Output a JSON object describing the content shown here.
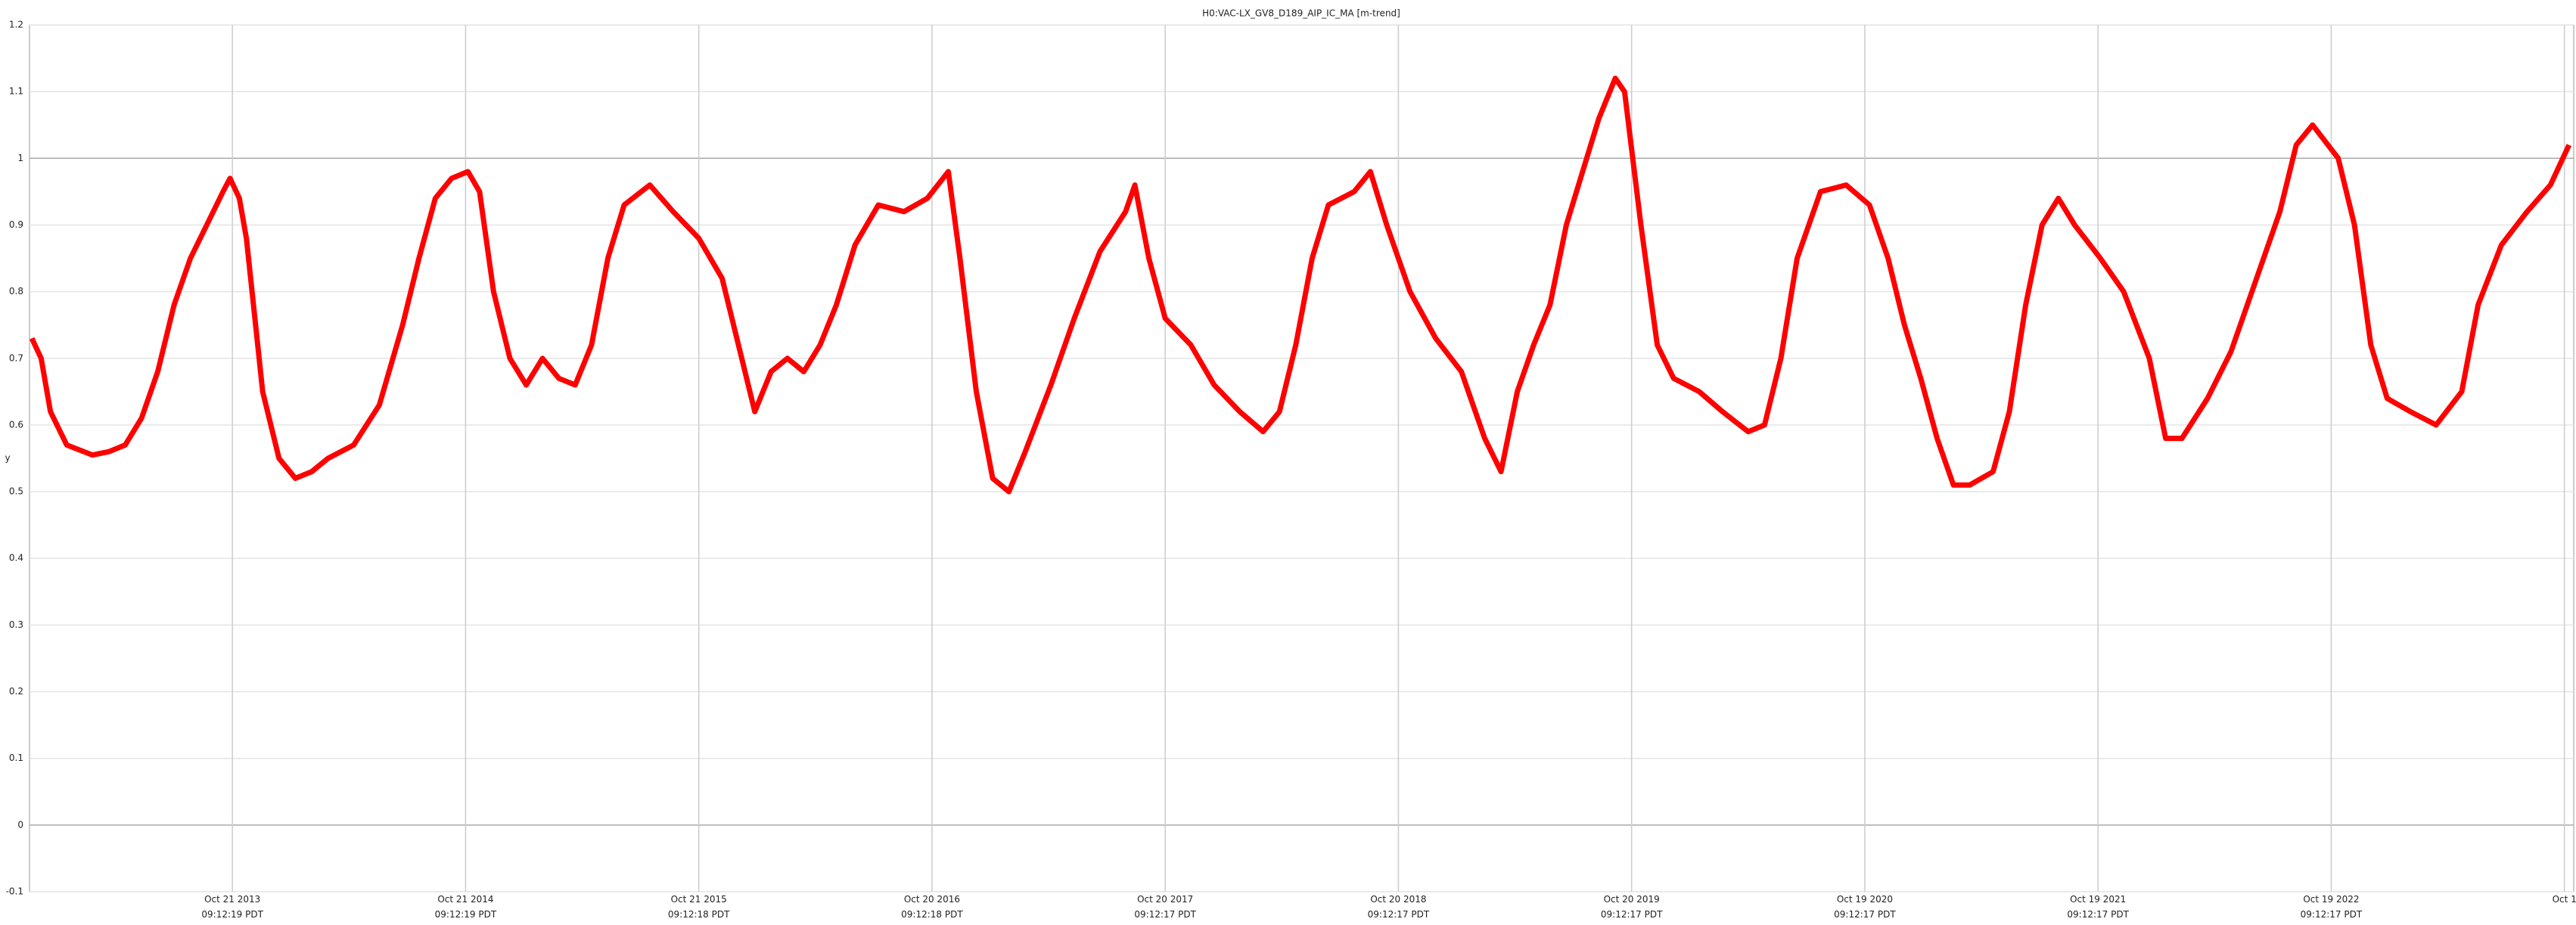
{
  "chart_data": {
    "type": "line",
    "title": "H0:VAC-LX_GV8_D189_AIP_IC_MA [m-trend]",
    "y_label": "y",
    "x": [
      2012.94,
      2012.98,
      2013.02,
      2013.09,
      2013.2,
      2013.27,
      2013.34,
      2013.41,
      2013.48,
      2013.55,
      2013.62,
      2013.69,
      2013.76,
      2013.79,
      2013.83,
      2013.86,
      2013.93,
      2014.0,
      2014.07,
      2014.14,
      2014.21,
      2014.32,
      2014.43,
      2014.53,
      2014.6,
      2014.67,
      2014.74,
      2014.81,
      2014.86,
      2014.92,
      2014.99,
      2015.06,
      2015.13,
      2015.2,
      2015.27,
      2015.34,
      2015.41,
      2015.48,
      2015.59,
      2015.69,
      2015.8,
      2015.9,
      2015.97,
      2016.04,
      2016.11,
      2016.18,
      2016.25,
      2016.32,
      2016.39,
      2016.47,
      2016.57,
      2016.68,
      2016.78,
      2016.87,
      2016.92,
      2016.99,
      2017.06,
      2017.13,
      2017.2,
      2017.31,
      2017.41,
      2017.52,
      2017.63,
      2017.67,
      2017.73,
      2017.8,
      2017.91,
      2018.01,
      2018.12,
      2018.22,
      2018.29,
      2018.36,
      2018.43,
      2018.5,
      2018.61,
      2018.68,
      2018.75,
      2018.85,
      2018.96,
      2019.07,
      2019.17,
      2019.24,
      2019.31,
      2019.38,
      2019.45,
      2019.52,
      2019.59,
      2019.66,
      2019.73,
      2019.77,
      2019.84,
      2019.91,
      2019.98,
      2020.09,
      2020.19,
      2020.3,
      2020.37,
      2020.44,
      2020.51,
      2020.61,
      2020.72,
      2020.82,
      2020.9,
      2020.97,
      2021.04,
      2021.11,
      2021.18,
      2021.25,
      2021.35,
      2021.42,
      2021.49,
      2021.56,
      2021.63,
      2021.7,
      2021.81,
      2021.91,
      2022.02,
      2022.09,
      2022.16,
      2022.27,
      2022.37,
      2022.48,
      2022.58,
      2022.65,
      2022.72,
      2022.83,
      2022.9,
      2022.97,
      2023.04,
      2023.14,
      2023.25,
      2023.36,
      2023.43,
      2023.53,
      2023.64,
      2023.74,
      2023.82
    ],
    "series": [
      {
        "color": "#ff0000",
        "values": [
          0.73,
          0.7,
          0.62,
          0.57,
          0.555,
          0.56,
          0.57,
          0.61,
          0.68,
          0.78,
          0.85,
          0.9,
          0.95,
          0.97,
          0.94,
          0.88,
          0.65,
          0.55,
          0.52,
          0.53,
          0.55,
          0.57,
          0.63,
          0.75,
          0.85,
          0.94,
          0.97,
          0.98,
          0.95,
          0.8,
          0.7,
          0.66,
          0.7,
          0.67,
          0.66,
          0.72,
          0.85,
          0.93,
          0.96,
          0.92,
          0.88,
          0.82,
          0.72,
          0.62,
          0.68,
          0.7,
          0.68,
          0.72,
          0.78,
          0.87,
          0.93,
          0.92,
          0.94,
          0.98,
          0.85,
          0.65,
          0.52,
          0.5,
          0.56,
          0.66,
          0.76,
          0.86,
          0.92,
          0.96,
          0.85,
          0.76,
          0.72,
          0.66,
          0.62,
          0.59,
          0.62,
          0.72,
          0.85,
          0.93,
          0.95,
          0.98,
          0.9,
          0.8,
          0.73,
          0.68,
          0.58,
          0.53,
          0.65,
          0.72,
          0.78,
          0.9,
          0.98,
          1.06,
          1.12,
          1.1,
          0.9,
          0.72,
          0.67,
          0.65,
          0.62,
          0.59,
          0.6,
          0.7,
          0.85,
          0.95,
          0.96,
          0.93,
          0.85,
          0.75,
          0.67,
          0.58,
          0.51,
          0.51,
          0.53,
          0.62,
          0.78,
          0.9,
          0.94,
          0.9,
          0.85,
          0.8,
          0.7,
          0.58,
          0.58,
          0.64,
          0.71,
          0.82,
          0.92,
          1.02,
          1.05,
          1.0,
          0.9,
          0.72,
          0.64,
          0.62,
          0.6,
          0.65,
          0.78,
          0.87,
          0.92,
          0.96,
          1.02
        ]
      }
    ],
    "xlim": [
      2012.93,
      2023.84
    ],
    "ylim": [
      -0.1,
      1.2
    ],
    "yticks": [
      -0.1,
      0,
      0.1,
      0.2,
      0.3,
      0.4,
      0.5,
      0.6,
      0.7,
      0.8,
      0.9,
      1,
      1.1,
      1.2
    ],
    "xticks": [
      {
        "value": 2013.8,
        "label": "Oct 21 2013\n09:12:19 PDT"
      },
      {
        "value": 2014.8,
        "label": "Oct 21 2014\n09:12:19 PDT"
      },
      {
        "value": 2015.8,
        "label": "Oct 21 2015\n09:12:18 PDT"
      },
      {
        "value": 2016.8,
        "label": "Oct 20 2016\n09:12:18 PDT"
      },
      {
        "value": 2017.8,
        "label": "Oct 20 2017\n09:12:17 PDT"
      },
      {
        "value": 2018.8,
        "label": "Oct 20 2018\n09:12:17 PDT"
      },
      {
        "value": 2019.8,
        "label": "Oct 20 2019\n09:12:17 PDT"
      },
      {
        "value": 2020.8,
        "label": "Oct 19 2020\n09:12:17 PDT"
      },
      {
        "value": 2021.8,
        "label": "Oct 19 2021\n09:12:17 PDT"
      },
      {
        "value": 2022.8,
        "label": "Oct 19 2022\n09:12:17 PDT"
      },
      {
        "value": 2023.8,
        "label": "Oct 1"
      }
    ],
    "grid": true
  }
}
